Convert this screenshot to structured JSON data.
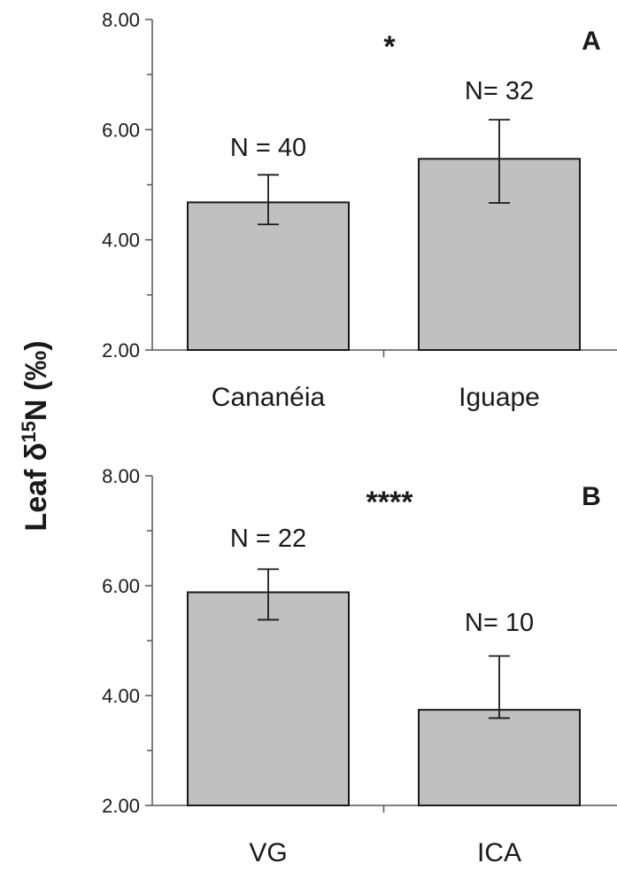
{
  "chart_data": [
    {
      "type": "bar",
      "panel": "A",
      "categories": [
        "Cananéia",
        "Iguape"
      ],
      "values": [
        4.68,
        5.47
      ],
      "error_low": [
        4.28,
        4.67
      ],
      "error_high": [
        5.18,
        6.18
      ],
      "n_labels": [
        "N = 40",
        "N= 32"
      ],
      "significance": "*",
      "ylim": [
        2.0,
        8.0
      ],
      "yticks": [
        "2.00",
        "4.00",
        "6.00",
        "8.00"
      ],
      "bar_color": "#c0c0c0"
    },
    {
      "type": "bar",
      "panel": "B",
      "categories": [
        "VG",
        "ICA"
      ],
      "values": [
        5.88,
        3.74
      ],
      "error_low": [
        5.38,
        3.59
      ],
      "error_high": [
        6.3,
        4.72
      ],
      "n_labels": [
        "N = 22",
        "N= 10"
      ],
      "significance": "****",
      "ylim": [
        2.0,
        8.0
      ],
      "yticks": [
        "2.00",
        "4.00",
        "6.00",
        "8.00"
      ],
      "bar_color": "#c0c0c0"
    }
  ],
  "ylabel": {
    "main": "Leaf δ",
    "superscript": "15",
    "rest": "N (‰)"
  }
}
